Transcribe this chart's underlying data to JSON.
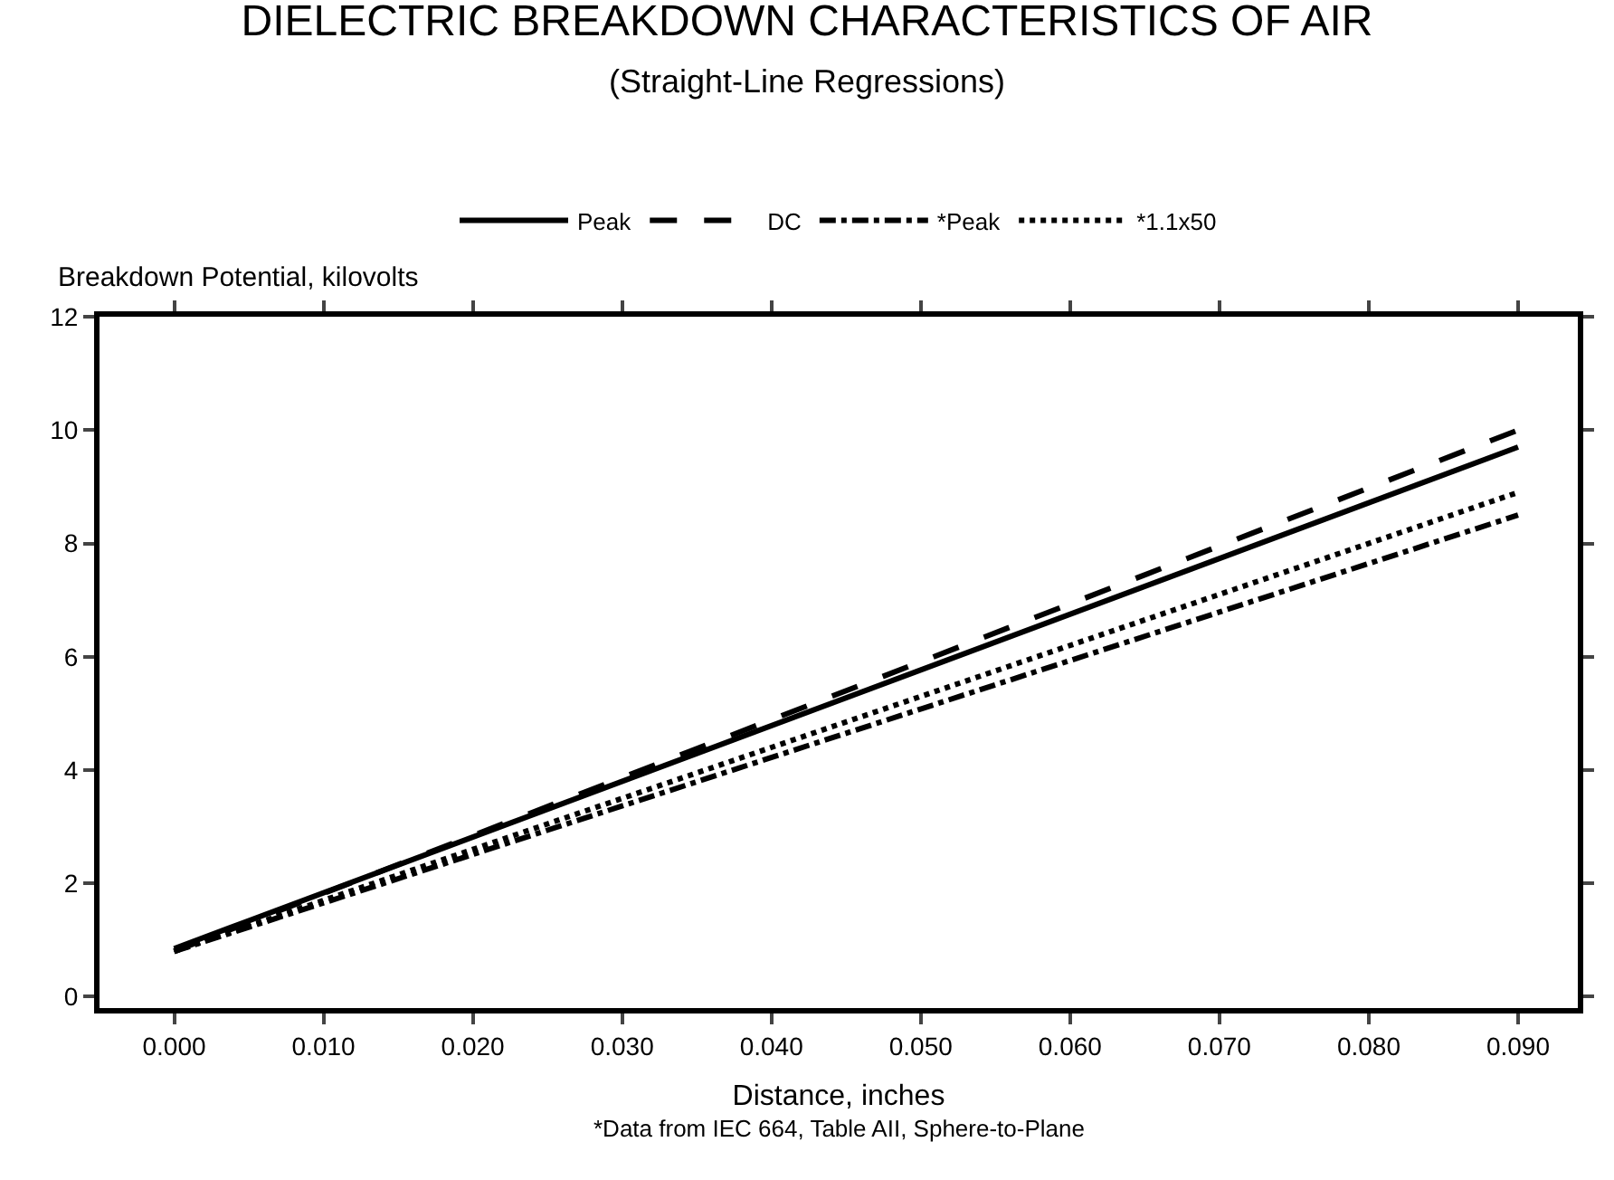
{
  "chart_data": {
    "type": "line",
    "title": "DIELECTRIC BREAKDOWN CHARACTERISTICS OF AIR",
    "subtitle": "(Straight-Line Regressions)",
    "xlabel": "Distance, inches",
    "ylabel": "Breakdown Potential, kilovolts",
    "x": [
      0.0,
      0.09
    ],
    "series": [
      {
        "name": "Peak",
        "color": "#000000",
        "values": [
          0.85,
          9.7
        ],
        "line_style": "solid"
      },
      {
        "name": "DC",
        "color": "#000000",
        "values": [
          0.8,
          10.0
        ],
        "line_style": "longdash"
      },
      {
        "name": "*Peak",
        "color": "#000000",
        "values": [
          0.8,
          8.5
        ],
        "line_style": "dashdot"
      },
      {
        "name": "*1.1x50",
        "color": "#000000",
        "values": [
          0.8,
          8.9
        ],
        "line_style": "dotted"
      }
    ],
    "xlim": [
      -0.005,
      0.094
    ],
    "xticks": [
      {
        "value": 0,
        "label": "0.000"
      },
      {
        "value": 0.01,
        "label": "0.010"
      },
      {
        "value": 0.02,
        "label": "0.020"
      },
      {
        "value": 0.03,
        "label": "0.030"
      },
      {
        "value": 0.04,
        "label": "0.040"
      },
      {
        "value": 0.05,
        "label": "0.050"
      },
      {
        "value": 0.06,
        "label": "0.060"
      },
      {
        "value": 0.07,
        "label": "0.070"
      },
      {
        "value": 0.08,
        "label": "0.080"
      },
      {
        "value": 0.09,
        "label": "0.090"
      }
    ],
    "ylim": [
      -0.2,
      12
    ],
    "yticks": [
      0,
      2,
      4,
      6,
      8,
      10,
      12
    ],
    "legend": "top",
    "marker": "none",
    "annotations": [
      "*Data from IEC 664, Table AII, Sphere-to-Plane"
    ]
  }
}
